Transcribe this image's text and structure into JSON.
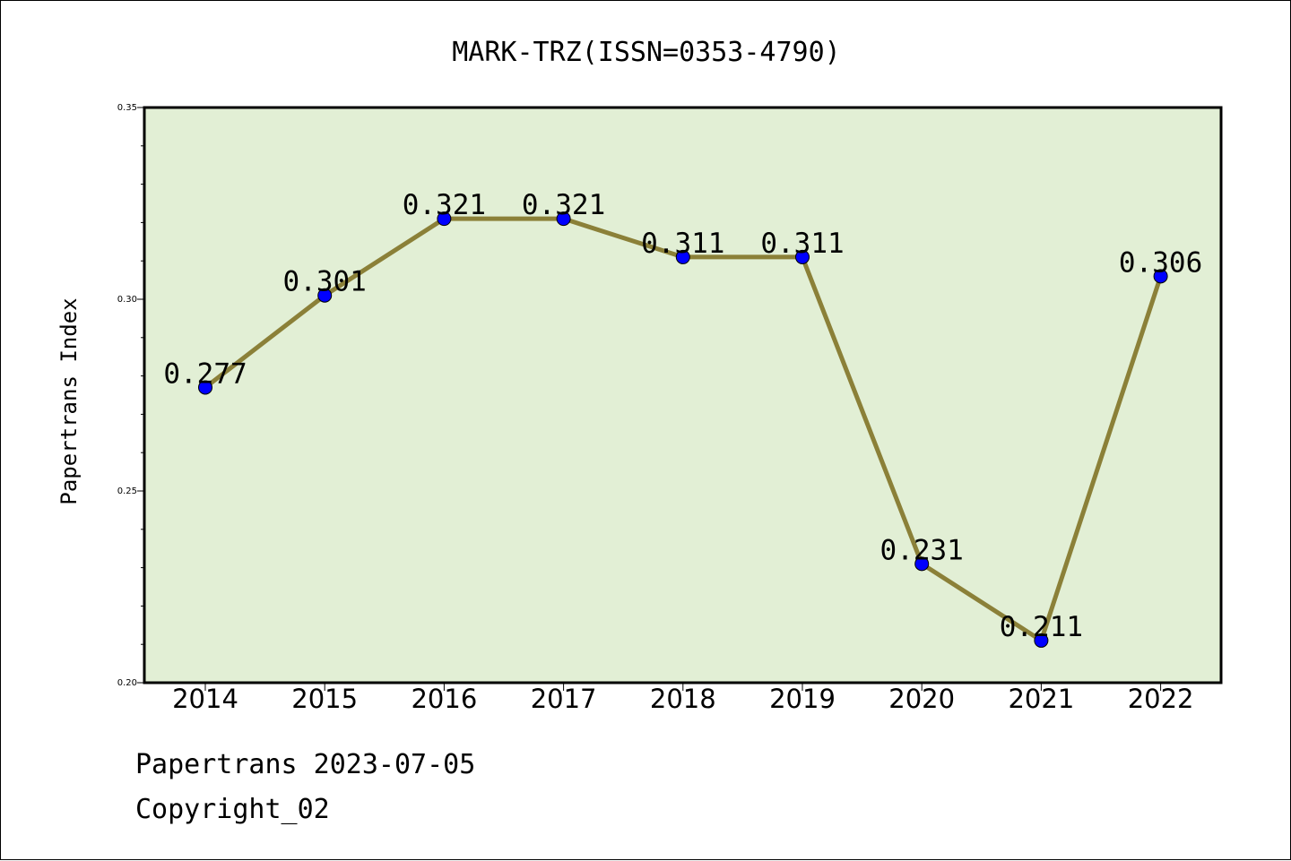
{
  "chart_data": {
    "type": "line",
    "title": "MARK-TRZ(ISSN=0353-4790)",
    "xlabel": "",
    "ylabel": "Papertrans Index",
    "categories": [
      "2014",
      "2015",
      "2016",
      "2017",
      "2018",
      "2019",
      "2020",
      "2021",
      "2022"
    ],
    "values": [
      0.277,
      0.301,
      0.321,
      0.321,
      0.311,
      0.311,
      0.231,
      0.211,
      0.306
    ],
    "data_labels": [
      "0.277",
      "0.301",
      "0.321",
      "0.321",
      "0.311",
      "0.311",
      "0.231",
      "0.211",
      "0.306"
    ],
    "ylim": [
      0.2,
      0.35
    ],
    "y_ticks": [
      "0.20",
      "0.25",
      "0.30",
      "0.35"
    ],
    "grid": false,
    "colors": {
      "plot_background": "#e2efd5",
      "line": "#8b8038",
      "marker": "#0000ff"
    }
  },
  "footer": {
    "line1": "Papertrans 2023-07-05",
    "line2": "Copyright_02"
  }
}
